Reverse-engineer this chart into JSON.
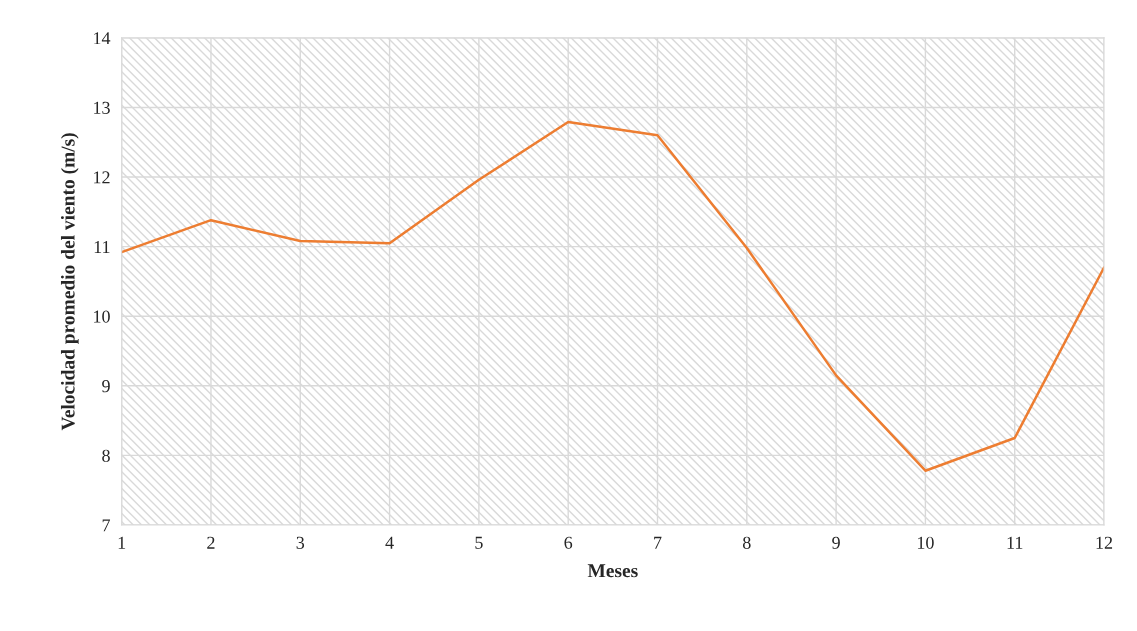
{
  "chart_data": {
    "type": "line",
    "xlabel": "Meses",
    "ylabel": "Velocidad promedio del viento (m/s)",
    "x": [
      1,
      2,
      3,
      4,
      5,
      6,
      7,
      8,
      9,
      10,
      11,
      12
    ],
    "series": [
      {
        "color": "#ed7d31",
        "values": [
          10.92,
          11.38,
          11.08,
          11.05,
          11.96,
          12.79,
          12.6,
          10.98,
          9.15,
          7.78,
          8.25,
          10.7
        ]
      }
    ],
    "xlim": [
      1,
      12
    ],
    "xticks": [
      1,
      2,
      3,
      4,
      5,
      6,
      7,
      8,
      9,
      10,
      11,
      12
    ],
    "ylim": [
      7,
      14
    ],
    "yticks": [
      7,
      8,
      9,
      10,
      11,
      12,
      13,
      14
    ],
    "grid": true,
    "legend": false,
    "marker": "none",
    "line_style": "solid"
  }
}
